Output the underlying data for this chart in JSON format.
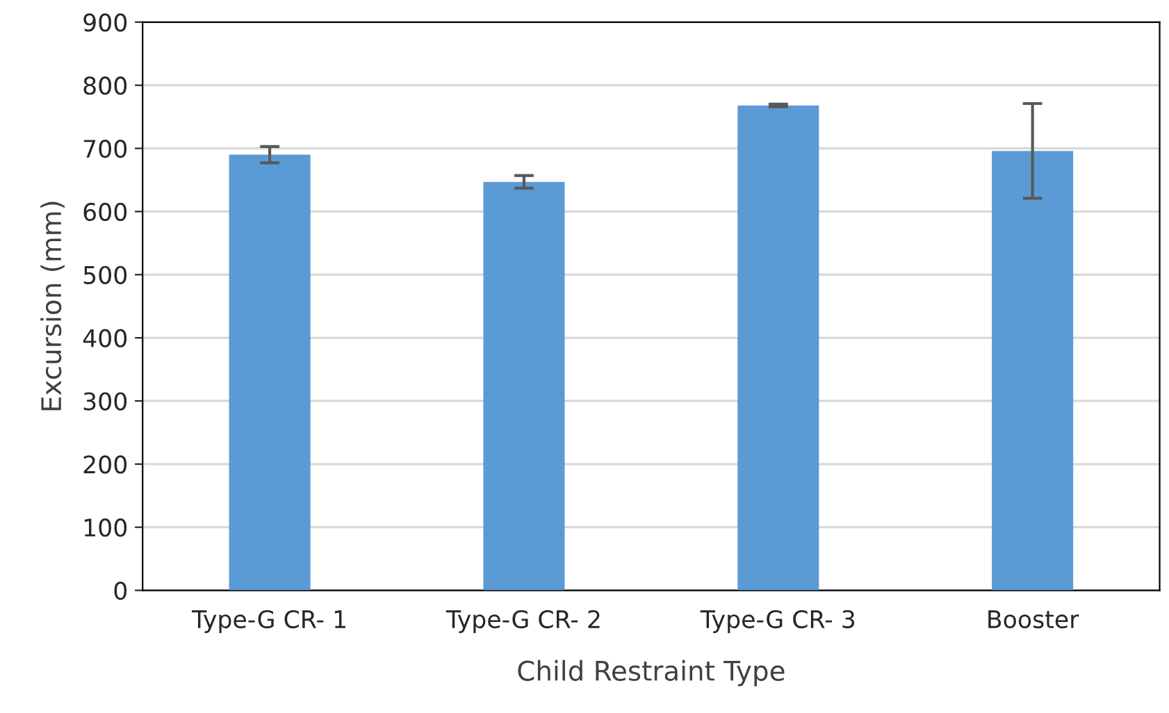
{
  "chart_data": {
    "type": "bar",
    "xlabel": "Child Restraint Type",
    "ylabel": "Excursion (mm)",
    "categories": [
      "Type-G CR- 1",
      "Type-G CR- 2",
      "Type-G CR- 3",
      "Booster"
    ],
    "values": [
      690,
      647,
      768,
      696
    ],
    "errors": [
      13,
      10,
      2,
      75
    ],
    "color": "#5b9bd5",
    "ylim": [
      0,
      900
    ],
    "yticks": [
      0,
      100,
      200,
      300,
      400,
      500,
      600,
      700,
      800,
      900
    ],
    "grid": "y"
  }
}
